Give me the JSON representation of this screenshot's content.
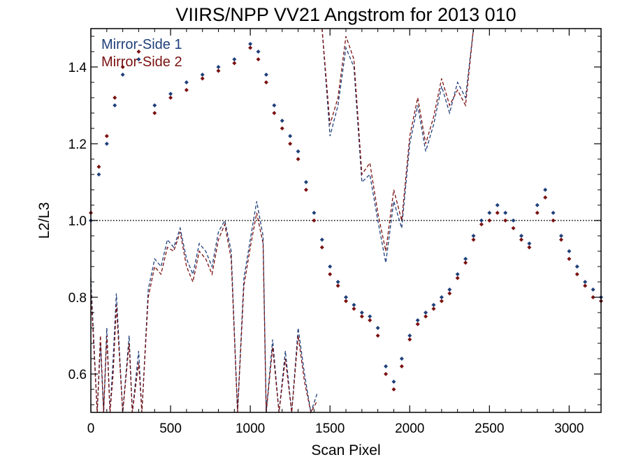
{
  "chart_data": {
    "type": "scatter",
    "title": "VIIRS/NPP VV21 Angstrom for 2013 010",
    "xlabel": "Scan Pixel",
    "ylabel": "L2/L3",
    "xlim": [
      0,
      3200
    ],
    "ylim": [
      0.5,
      1.5
    ],
    "xticks": [
      0,
      500,
      1000,
      1500,
      2000,
      2500,
      3000
    ],
    "yticks": [
      0.6,
      0.8,
      1.0,
      1.2,
      1.4
    ],
    "ytick_labels": [
      "0.6",
      "0.8",
      "1.0",
      "1.2",
      "1.4"
    ],
    "reference_line": 1.0,
    "legend_position": "top-left",
    "grid": false,
    "series": [
      {
        "name": "Mirror-Side 1",
        "color": "#1f3f7a",
        "marker": "diamond",
        "x": [
          0,
          50,
          100,
          150,
          200,
          300,
          400,
          500,
          600,
          700,
          800,
          900,
          1000,
          1050,
          1100,
          1150,
          1200,
          1250,
          1300,
          1350,
          1400,
          1450,
          1500,
          1550,
          1600,
          1650,
          1700,
          1750,
          1800,
          1850,
          1900,
          1950,
          2000,
          2050,
          2100,
          2150,
          2200,
          2250,
          2300,
          2350,
          2400,
          2450,
          2500,
          2550,
          2600,
          2650,
          2700,
          2750,
          2800,
          2850,
          2900,
          2950,
          3000,
          3050,
          3100,
          3150,
          3200
        ],
        "y": [
          1.0,
          1.12,
          1.2,
          1.3,
          1.38,
          1.42,
          1.3,
          1.33,
          1.36,
          1.38,
          1.4,
          1.42,
          1.46,
          1.44,
          1.38,
          1.3,
          1.26,
          1.22,
          1.18,
          1.1,
          1.02,
          0.95,
          0.88,
          0.84,
          0.8,
          0.78,
          0.76,
          0.75,
          0.72,
          0.62,
          0.58,
          0.64,
          0.7,
          0.74,
          0.76,
          0.78,
          0.8,
          0.82,
          0.86,
          0.9,
          0.96,
          1.0,
          1.02,
          1.04,
          1.02,
          1.0,
          0.96,
          0.94,
          1.04,
          1.08,
          1.02,
          0.96,
          0.92,
          0.88,
          0.84,
          0.82,
          0.8
        ]
      },
      {
        "name": "Mirror-Side 2",
        "color": "#7a1010",
        "marker": "diamond",
        "x": [
          0,
          50,
          100,
          150,
          200,
          300,
          400,
          500,
          600,
          700,
          800,
          900,
          1000,
          1050,
          1100,
          1150,
          1200,
          1250,
          1300,
          1350,
          1400,
          1450,
          1500,
          1550,
          1600,
          1650,
          1700,
          1750,
          1800,
          1850,
          1900,
          1950,
          2000,
          2050,
          2100,
          2150,
          2200,
          2250,
          2300,
          2350,
          2400,
          2450,
          2500,
          2550,
          2600,
          2650,
          2700,
          2750,
          2800,
          2850,
          2900,
          2950,
          3000,
          3050,
          3100,
          3150,
          3200
        ],
        "y": [
          1.02,
          1.14,
          1.22,
          1.32,
          1.4,
          1.44,
          1.28,
          1.32,
          1.34,
          1.37,
          1.39,
          1.41,
          1.45,
          1.42,
          1.36,
          1.28,
          1.24,
          1.2,
          1.16,
          1.08,
          1.0,
          0.93,
          0.86,
          0.83,
          0.79,
          0.77,
          0.75,
          0.74,
          0.7,
          0.6,
          0.56,
          0.62,
          0.69,
          0.73,
          0.75,
          0.77,
          0.79,
          0.81,
          0.85,
          0.89,
          0.95,
          0.99,
          1.0,
          1.02,
          1.0,
          0.98,
          0.95,
          0.93,
          1.02,
          1.06,
          1.0,
          0.95,
          0.9,
          0.86,
          0.83,
          0.8,
          0.79
        ]
      }
    ],
    "dashed_series": [
      {
        "name": "Mirror-Side 1",
        "color": "#1f3f7a",
        "x": [
          0,
          40,
          60,
          80,
          100,
          120,
          140,
          160,
          200,
          240,
          260,
          300,
          320,
          360,
          400,
          440,
          480,
          520,
          560,
          600,
          640,
          680,
          720,
          760,
          800,
          840,
          880,
          920,
          960,
          1000,
          1040,
          1080,
          1100,
          1140,
          1180,
          1220,
          1260,
          1300,
          1340,
          1380,
          1420
        ],
        "y": [
          0.85,
          0.5,
          0.68,
          0.5,
          0.72,
          0.5,
          0.64,
          0.81,
          0.5,
          0.7,
          0.5,
          0.66,
          0.5,
          0.82,
          0.9,
          0.88,
          0.95,
          0.93,
          0.98,
          0.9,
          0.86,
          0.94,
          0.92,
          0.88,
          0.97,
          1.0,
          0.92,
          0.5,
          0.85,
          0.95,
          1.05,
          0.96,
          0.5,
          0.69,
          0.5,
          0.66,
          0.5,
          0.72,
          0.6,
          0.5,
          0.55
        ]
      },
      {
        "name": "Mirror-Side 2",
        "color": "#7a1010",
        "x": [
          0,
          40,
          60,
          80,
          100,
          120,
          140,
          160,
          200,
          240,
          260,
          300,
          320,
          360,
          400,
          440,
          480,
          520,
          560,
          600,
          640,
          680,
          720,
          760,
          800,
          840,
          880,
          920,
          960,
          1000,
          1040,
          1080,
          1100,
          1140,
          1180,
          1220,
          1260,
          1300,
          1340,
          1380,
          1420
        ],
        "y": [
          0.82,
          0.5,
          0.7,
          0.5,
          0.7,
          0.5,
          0.6,
          0.78,
          0.5,
          0.68,
          0.5,
          0.63,
          0.5,
          0.8,
          0.88,
          0.86,
          0.93,
          0.92,
          0.97,
          0.88,
          0.84,
          0.92,
          0.9,
          0.86,
          0.95,
          0.99,
          0.9,
          0.5,
          0.83,
          0.93,
          1.02,
          0.94,
          0.5,
          0.67,
          0.5,
          0.64,
          0.5,
          0.7,
          0.58,
          0.5,
          0.53
        ]
      }
    ],
    "upper_dashed_series": [
      {
        "name": "Mirror-Side 1",
        "color": "#1f3f7a",
        "x": [
          1450,
          1500,
          1550,
          1600,
          1650,
          1700,
          1750,
          1800,
          1850,
          1900,
          1950,
          2000,
          2050,
          2100,
          2150,
          2200,
          2250,
          2300,
          2350,
          2400
        ],
        "y": [
          1.5,
          1.22,
          1.3,
          1.45,
          1.4,
          1.1,
          1.12,
          1.0,
          0.89,
          1.05,
          0.98,
          1.2,
          1.3,
          1.18,
          1.25,
          1.35,
          1.28,
          1.36,
          1.32,
          1.5
        ]
      },
      {
        "name": "Mirror-Side 2",
        "color": "#7a1010",
        "x": [
          1450,
          1500,
          1550,
          1600,
          1650,
          1700,
          1750,
          1800,
          1850,
          1900,
          1950,
          2000,
          2050,
          2100,
          2150,
          2200,
          2250,
          2300,
          2350,
          2400
        ],
        "y": [
          1.5,
          1.25,
          1.32,
          1.48,
          1.42,
          1.12,
          1.15,
          1.02,
          0.92,
          1.08,
          1.0,
          1.22,
          1.32,
          1.2,
          1.27,
          1.37,
          1.3,
          1.34,
          1.3,
          1.5
        ]
      }
    ]
  }
}
